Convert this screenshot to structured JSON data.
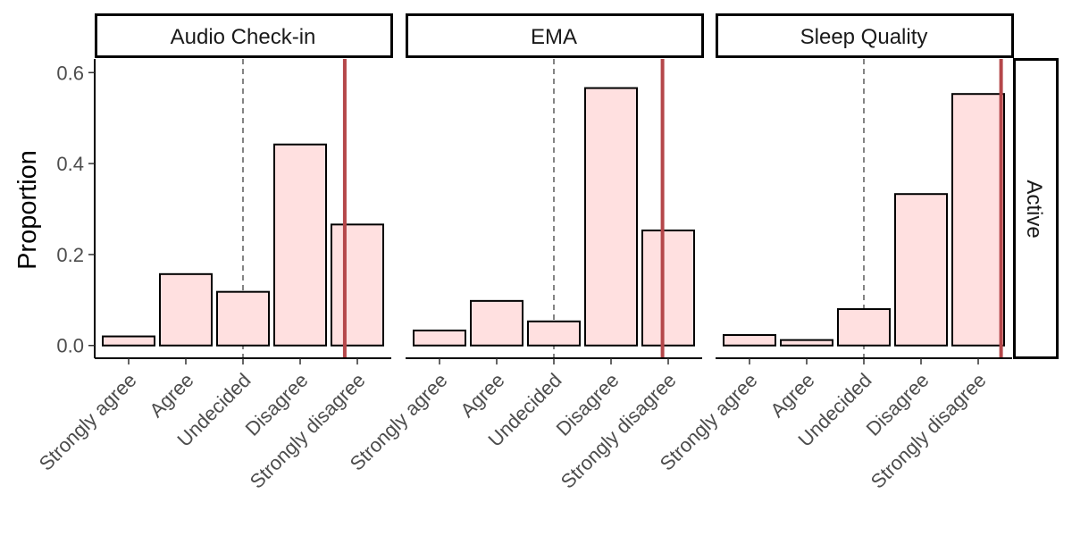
{
  "chart_data": {
    "type": "bar",
    "ylabel": "Proportion",
    "xlabel": "",
    "ylim": [
      -0.028,
      0.63
    ],
    "yticks": [
      0.0,
      0.2,
      0.4,
      0.6
    ],
    "ytick_labels": [
      "0.0",
      "0.2",
      "0.4",
      "0.6"
    ],
    "categories": [
      "Strongly agree",
      "Agree",
      "Undecided",
      "Disagree",
      "Strongly disagree"
    ],
    "row_strip": "Active",
    "neutral_line_category": "Undecided",
    "colors": {
      "bar_fill": "#ffe0e0",
      "bar_stroke": "#000000",
      "mean_line": "#b5474a",
      "neutral_line": "#666666"
    },
    "panels": [
      {
        "title": "Audio Check-in",
        "values": [
          0.02,
          0.157,
          0.118,
          0.442,
          0.266
        ],
        "mean_position": 3.78
      },
      {
        "title": "EMA",
        "values": [
          0.033,
          0.098,
          0.053,
          0.566,
          0.253
        ],
        "mean_position": 3.9
      },
      {
        "title": "Sleep Quality",
        "values": [
          0.023,
          0.012,
          0.08,
          0.333,
          0.553
        ],
        "mean_position": 4.4
      }
    ]
  }
}
